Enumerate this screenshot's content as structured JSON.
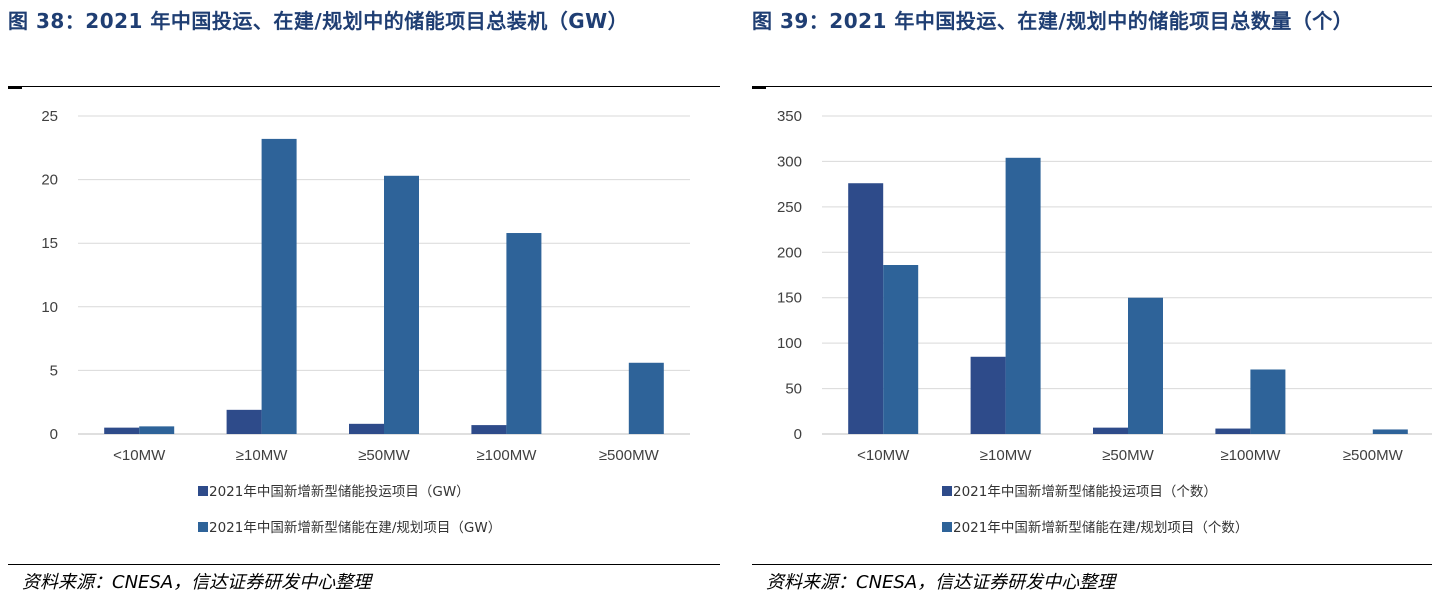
{
  "chart_data": [
    {
      "type": "bar",
      "title": "图 38：2021 年中国投运、在建/规划中的储能项目总装机（GW）",
      "source": "资料来源：CNESA，信达证券研发中心整理",
      "categories": [
        "<10MW",
        "≥10MW",
        "≥50MW",
        "≥100MW",
        "≥500MW"
      ],
      "ylim": [
        0,
        25
      ],
      "yticks": [
        "0",
        "5",
        "10",
        "15",
        "20",
        "25"
      ],
      "grid": true,
      "legend": "bottom",
      "series": [
        {
          "name": "2021年中国新增新型储能投运项目（GW）",
          "values": [
            0.5,
            1.9,
            0.8,
            0.7,
            0
          ],
          "color": "#2e4b8a"
        },
        {
          "name": "2021年中国新增新型储能在建/规划项目（GW）",
          "values": [
            0.6,
            23.2,
            20.3,
            15.8,
            5.6
          ],
          "color": "#2e6399"
        }
      ]
    },
    {
      "type": "bar",
      "title": "图 39：2021 年中国投运、在建/规划中的储能项目总数量（个）",
      "source": "资料来源：CNESA，信达证券研发中心整理",
      "categories": [
        "<10MW",
        "≥10MW",
        "≥50MW",
        "≥100MW",
        "≥500MW"
      ],
      "ylim": [
        0,
        350
      ],
      "yticks": [
        "0",
        "50",
        "100",
        "150",
        "200",
        "250",
        "300",
        "350"
      ],
      "grid": true,
      "legend": "bottom",
      "series": [
        {
          "name": "2021年中国新增新型储能投运项目（个数）",
          "values": [
            276,
            85,
            7,
            6,
            0
          ],
          "color": "#2e4b8a"
        },
        {
          "name": "2021年中国新增新型储能在建/规划项目（个数）",
          "values": [
            186,
            304,
            150,
            71,
            5
          ],
          "color": "#2e6399"
        }
      ]
    }
  ]
}
